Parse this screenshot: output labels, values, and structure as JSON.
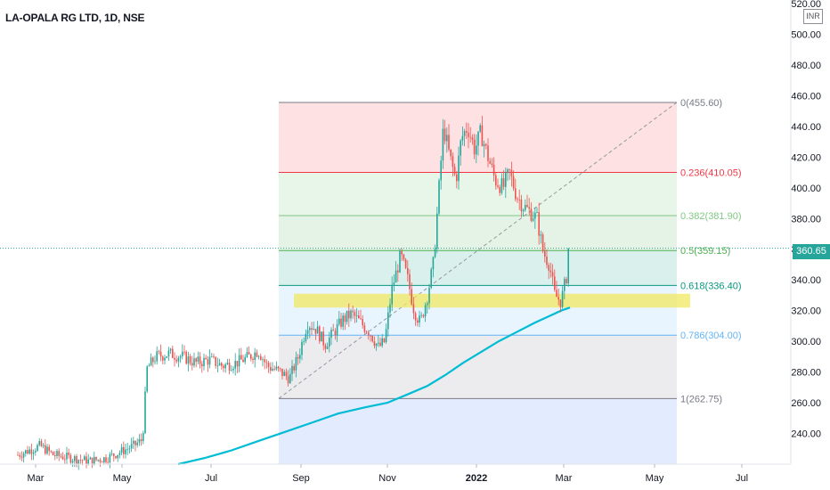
{
  "title": "LA-OPALA RG LTD, 1D, NSE",
  "currency": "INR",
  "current_price": "360.65",
  "colors": {
    "up": "#26a69a",
    "down": "#ef5350",
    "ma": "#00bcd4",
    "highlight": "#f0e860"
  },
  "chart_data": {
    "type": "candlestick",
    "title": "LA-OPALA RG LTD, 1D, NSE",
    "ylim": [
      220,
      520
    ],
    "y_ticks": [
      "240.00",
      "260.00",
      "280.00",
      "300.00",
      "320.00",
      "340.00",
      "360.00",
      "380.00",
      "400.00",
      "420.00",
      "440.00",
      "460.00",
      "480.00",
      "500.00",
      "520.00"
    ],
    "x_ticks": [
      {
        "label": "Mar",
        "x": 40
      },
      {
        "label": "May",
        "x": 137
      },
      {
        "label": "Jul",
        "x": 237
      },
      {
        "label": "Sep",
        "x": 338
      },
      {
        "label": "Nov",
        "x": 435
      },
      {
        "label": "2022",
        "x": 535
      },
      {
        "label": "Mar",
        "x": 633
      },
      {
        "label": "May",
        "x": 735
      },
      {
        "label": "Jul",
        "x": 833
      }
    ],
    "current_price": 360.65,
    "fibonacci": {
      "high": 455.6,
      "low": 262.75,
      "levels": [
        {
          "ratio": "0",
          "price": 455.6,
          "label": "0(455.60)",
          "color": "#787b86",
          "fill": "rgba(242,54,69,0.15)"
        },
        {
          "ratio": "0.236",
          "price": 410.05,
          "label": "0.236(410.05)",
          "color": "#f23645",
          "fill": "rgba(129,199,132,0.18)"
        },
        {
          "ratio": "0.382",
          "price": 381.9,
          "label": "0.382(381.90)",
          "color": "#81c784",
          "fill": "rgba(76,175,80,0.15)"
        },
        {
          "ratio": "0.5",
          "price": 359.15,
          "label": "0.5(359.15)",
          "color": "#4caf50",
          "fill": "rgba(8,153,129,0.15)"
        },
        {
          "ratio": "0.618",
          "price": 336.4,
          "label": "0.618(336.40)",
          "color": "#089981",
          "fill": "rgba(100,181,246,0.15)"
        },
        {
          "ratio": "0.786",
          "price": 304.0,
          "label": "0.786(304.00)",
          "color": "#64b5f6",
          "fill": "rgba(120,123,134,0.14)"
        },
        {
          "ratio": "1",
          "price": 262.75,
          "label": "1(262.75)",
          "color": "#787b86",
          "fill": "rgba(41,98,255,0.13)"
        }
      ]
    },
    "support_zone": [
      322,
      331
    ],
    "moving_average": [
      [
        200,
        220
      ],
      [
        230,
        224
      ],
      [
        260,
        229
      ],
      [
        290,
        235
      ],
      [
        320,
        241
      ],
      [
        350,
        247
      ],
      [
        380,
        253
      ],
      [
        410,
        257
      ],
      [
        435,
        260
      ],
      [
        460,
        266
      ],
      [
        480,
        271
      ],
      [
        500,
        278
      ],
      [
        520,
        286
      ],
      [
        540,
        293
      ],
      [
        560,
        300
      ],
      [
        580,
        306
      ],
      [
        600,
        312
      ],
      [
        615,
        316
      ],
      [
        630,
        320
      ],
      [
        640,
        322
      ]
    ],
    "price_path": [
      [
        20,
        226
      ],
      [
        45,
        232
      ],
      [
        60,
        226
      ],
      [
        80,
        224
      ],
      [
        100,
        222
      ],
      [
        120,
        224
      ],
      [
        135,
        228
      ],
      [
        150,
        232
      ],
      [
        160,
        236
      ],
      [
        165,
        282
      ],
      [
        175,
        290
      ],
      [
        190,
        292
      ],
      [
        205,
        290
      ],
      [
        220,
        286
      ],
      [
        235,
        288
      ],
      [
        250,
        284
      ],
      [
        265,
        286
      ],
      [
        280,
        290
      ],
      [
        290,
        294
      ],
      [
        300,
        284
      ],
      [
        315,
        280
      ],
      [
        325,
        276
      ],
      [
        335,
        290
      ],
      [
        345,
        312
      ],
      [
        355,
        308
      ],
      [
        365,
        298
      ],
      [
        375,
        306
      ],
      [
        385,
        314
      ],
      [
        395,
        318
      ],
      [
        405,
        312
      ],
      [
        415,
        306
      ],
      [
        425,
        296
      ],
      [
        432,
        300
      ],
      [
        440,
        334
      ],
      [
        450,
        356
      ],
      [
        458,
        340
      ],
      [
        465,
        320
      ],
      [
        472,
        312
      ],
      [
        480,
        330
      ],
      [
        487,
        352
      ],
      [
        493,
        400
      ],
      [
        498,
        440
      ],
      [
        505,
        420
      ],
      [
        512,
        405
      ],
      [
        518,
        432
      ],
      [
        525,
        440
      ],
      [
        533,
        425
      ],
      [
        540,
        436
      ],
      [
        548,
        420
      ],
      [
        556,
        405
      ],
      [
        565,
        400
      ],
      [
        572,
        410
      ],
      [
        580,
        395
      ],
      [
        588,
        388
      ],
      [
        596,
        384
      ],
      [
        603,
        380
      ],
      [
        610,
        358
      ],
      [
        617,
        350
      ],
      [
        623,
        330
      ],
      [
        630,
        326
      ],
      [
        636,
        342
      ],
      [
        639,
        360.65
      ]
    ]
  }
}
